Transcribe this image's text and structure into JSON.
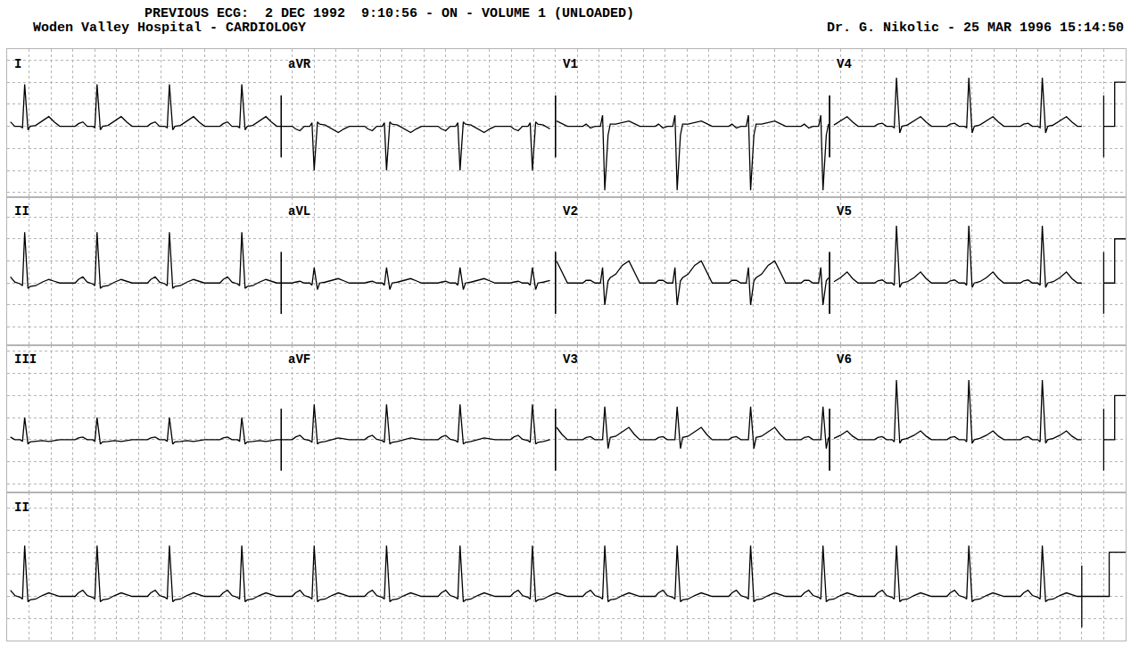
{
  "chart_data": {
    "type": "line",
    "header": {
      "previous": "PREVIOUS ECG:  2 DEC 1992  9:10:56 - ON - VOLUME 1 (UNLOADED)",
      "hospital": "Woden Valley Hospital - CARDIOLOGY",
      "doctor": "Dr. G. Nikolic - 25 MAR 1996 15:14:50"
    },
    "color": "#000000",
    "grid": true,
    "tick_labels": false,
    "xlim": [
      0,
      10.2
    ],
    "xticks": [
      0,
      0.2,
      0.4,
      0.6,
      0.8,
      1,
      1.2,
      1.4,
      1.6,
      1.8,
      2,
      2.2,
      2.4,
      2.6,
      2.8,
      3,
      3.2,
      3.4,
      3.6,
      3.8,
      4,
      4.2,
      4.4,
      4.6,
      4.8,
      5,
      5.2,
      5.4,
      5.6,
      5.8,
      6,
      6.2,
      6.4,
      6.6,
      6.8,
      7,
      7.2,
      7.4,
      7.6,
      7.8,
      8,
      8.2,
      8.4,
      8.6,
      8.8,
      9,
      9.2,
      9.4,
      9.6,
      9.8,
      10,
      10.2
    ],
    "beats": [
      0.16,
      0.82,
      1.48,
      2.14,
      2.8,
      3.46,
      4.13,
      4.79,
      5.45,
      6.11,
      6.78,
      7.44,
      8.11,
      8.77,
      9.44
    ],
    "beat_t": [
      -0.3,
      -0.2,
      -0.17,
      -0.13,
      -0.09,
      -0.04,
      -0.02,
      0,
      0.03,
      0.05,
      0.1,
      0.16,
      0.22,
      0.27,
      0.32,
      0.36
    ],
    "rows": [
      {
        "ylim": [
          -1.6,
          1.75
        ],
        "yticks": [
          -1.5,
          -1,
          -0.5,
          0,
          0.5,
          1,
          1.5
        ],
        "calibration": {
          "x": [
            10,
            10.1,
            10.1,
            10.2
          ],
          "y": [
            0,
            0,
            1,
            1
          ]
        },
        "series": [
          {
            "name": "I",
            "start": 0,
            "end": 2.5,
            "values": [
              0,
              0,
              0.06,
              0.1,
              0,
              0,
              -0.03,
              0.95,
              -0.08,
              0,
              0.02,
              0.12,
              0.22,
              0.1,
              0,
              0
            ]
          },
          {
            "name": "aVR",
            "start": 2.5,
            "end": 5,
            "values": [
              0,
              0,
              -0.06,
              -0.1,
              0,
              0,
              0.08,
              -1.0,
              0.1,
              0.05,
              0.03,
              -0.06,
              -0.14,
              -0.06,
              0,
              0
            ]
          },
          {
            "name": "V1",
            "start": 5,
            "end": 7.5,
            "values": [
              0,
              0,
              0.05,
              -0.04,
              0,
              0,
              0.25,
              -1.45,
              -0.2,
              0.05,
              0.05,
              0.08,
              0.12,
              0.06,
              0,
              0
            ]
          },
          {
            "name": "V4",
            "start": 7.5,
            "end": 10,
            "values": [
              0,
              0,
              0.05,
              0.07,
              0,
              0,
              -0.03,
              1.1,
              -0.15,
              0,
              0.03,
              0.12,
              0.22,
              0.1,
              0,
              0
            ]
          }
        ]
      },
      {
        "ylim": [
          -1.4,
          1.95
        ],
        "yticks": [
          -1,
          -0.5,
          0,
          0.5,
          1,
          1.5
        ],
        "calibration": {
          "x": [
            10,
            10.1,
            10.1,
            10.2
          ],
          "y": [
            0,
            0,
            1,
            1
          ]
        },
        "series": [
          {
            "name": "II",
            "start": 0,
            "end": 2.5,
            "values": [
              0,
              0,
              0.08,
              0.14,
              0.02,
              -0.02,
              -0.06,
              1.15,
              -0.12,
              -0.08,
              -0.06,
              0.02,
              0.08,
              0.04,
              0,
              0
            ]
          },
          {
            "name": "aVL",
            "start": 2.5,
            "end": 5,
            "values": [
              0,
              0,
              0.02,
              0.04,
              0,
              0,
              -0.05,
              0.35,
              -0.15,
              0,
              0.02,
              0.06,
              0.1,
              0.05,
              0,
              0
            ]
          },
          {
            "name": "V2",
            "start": 5,
            "end": 7.5,
            "values": [
              0,
              0,
              0.06,
              0.06,
              0,
              0,
              0.35,
              -0.5,
              0.05,
              0.12,
              0.2,
              0.4,
              0.5,
              0.25,
              0,
              0
            ]
          },
          {
            "name": "V5",
            "start": 7.5,
            "end": 10,
            "values": [
              0,
              0,
              0.05,
              0.07,
              0,
              0,
              -0.05,
              1.3,
              -0.1,
              0,
              0.03,
              0.12,
              0.25,
              0.1,
              0,
              0
            ]
          }
        ]
      },
      {
        "ylim": [
          -1.2,
          2.15
        ],
        "yticks": [
          -1,
          -0.5,
          0,
          0.5,
          1,
          1.5,
          2
        ],
        "calibration": {
          "x": [
            10,
            10.1,
            10.1,
            10.2
          ],
          "y": [
            0,
            0,
            1,
            1
          ]
        },
        "series": [
          {
            "name": "III",
            "start": 0,
            "end": 2.5,
            "values": [
              0,
              0,
              0.04,
              0.06,
              0,
              0,
              -0.04,
              0.5,
              -0.1,
              -0.05,
              -0.04,
              -0.02,
              -0.04,
              -0.02,
              0,
              0
            ]
          },
          {
            "name": "aVF",
            "start": 2.5,
            "end": 5,
            "values": [
              0,
              0,
              0.06,
              0.1,
              0.01,
              -0.02,
              -0.06,
              0.8,
              -0.1,
              -0.06,
              -0.04,
              0,
              0.04,
              0.02,
              0,
              0
            ]
          },
          {
            "name": "V3",
            "start": 5,
            "end": 7.5,
            "values": [
              0,
              0,
              0.05,
              0.07,
              0,
              0,
              0,
              0.75,
              -0.2,
              0.05,
              0.08,
              0.18,
              0.28,
              0.12,
              0,
              0
            ]
          },
          {
            "name": "V6",
            "start": 7.5,
            "end": 10,
            "values": [
              0,
              0,
              0.05,
              0.07,
              0,
              0,
              -0.05,
              1.35,
              -0.08,
              0,
              0.03,
              0.1,
              0.2,
              0.08,
              0,
              0
            ]
          }
        ]
      },
      {
        "ylim": [
          -1.0,
          2.35
        ],
        "yticks": [
          -1,
          -0.5,
          0,
          0.5,
          1,
          1.5,
          2
        ],
        "calibration": {
          "x": [
            9.8,
            10.05,
            10.05,
            10.2
          ],
          "y": [
            0,
            0,
            1,
            1
          ]
        },
        "series": [
          {
            "name": "II",
            "start": 0,
            "end": 9.8,
            "values": [
              0,
              0,
              0.08,
              0.14,
              0.02,
              -0.02,
              -0.06,
              1.15,
              -0.12,
              -0.08,
              -0.06,
              0.02,
              0.08,
              0.04,
              0,
              0
            ]
          }
        ]
      }
    ]
  }
}
